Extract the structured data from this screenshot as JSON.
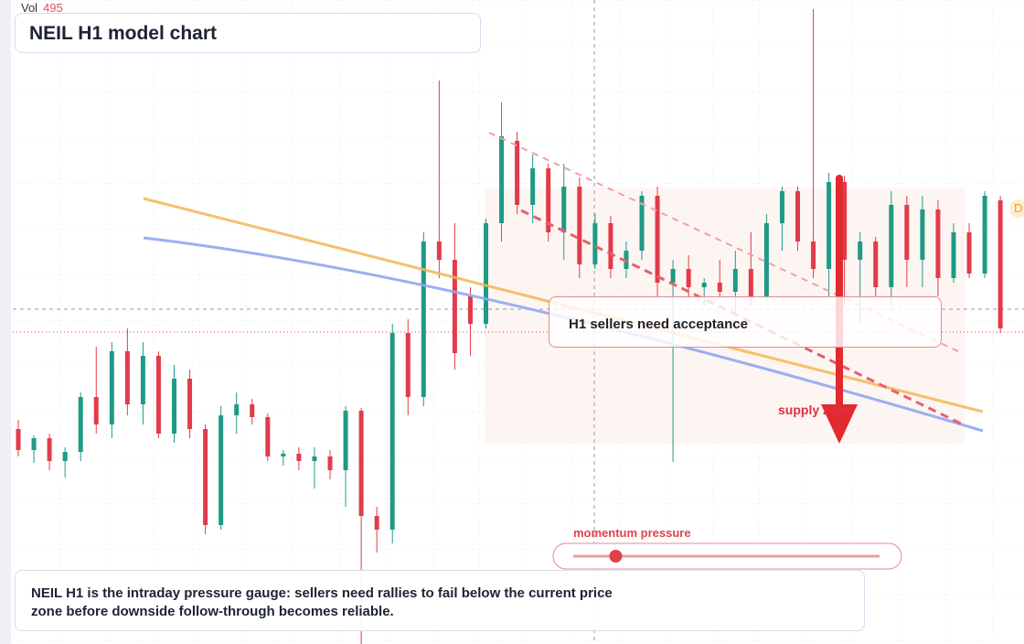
{
  "chart_data": {
    "type": "candlestick",
    "title": "NEIL H1 model chart",
    "volume_label": "Vol",
    "volume_value": 495,
    "up_color": "#1e9a86",
    "down_color": "#e23b4b",
    "ylim": [
      0,
      704
    ],
    "ohlc": [
      [
        235,
        245,
        205,
        212
      ],
      [
        212,
        228,
        198,
        225
      ],
      [
        225,
        230,
        190,
        200
      ],
      [
        200,
        215,
        182,
        210
      ],
      [
        210,
        275,
        200,
        270
      ],
      [
        270,
        325,
        230,
        240
      ],
      [
        240,
        330,
        225,
        320
      ],
      [
        320,
        345,
        250,
        262
      ],
      [
        262,
        330,
        240,
        315
      ],
      [
        315,
        320,
        225,
        230
      ],
      [
        230,
        305,
        220,
        290
      ],
      [
        290,
        300,
        225,
        235
      ],
      [
        235,
        240,
        120,
        130
      ],
      [
        130,
        260,
        125,
        250
      ],
      [
        250,
        275,
        230,
        262
      ],
      [
        262,
        268,
        240,
        248
      ],
      [
        248,
        252,
        200,
        205
      ],
      [
        205,
        212,
        195,
        208
      ],
      [
        208,
        215,
        190,
        200
      ],
      [
        200,
        215,
        170,
        205
      ],
      [
        205,
        212,
        180,
        190
      ],
      [
        190,
        260,
        150,
        255
      ],
      [
        255,
        258,
        0,
        140
      ],
      [
        140,
        150,
        100,
        125
      ],
      [
        125,
        350,
        110,
        340
      ],
      [
        340,
        355,
        250,
        270
      ],
      [
        270,
        450,
        260,
        440
      ],
      [
        440,
        616,
        400,
        420
      ],
      [
        420,
        460,
        300,
        318
      ],
      [
        380,
        390,
        315,
        350
      ],
      [
        350,
        465,
        345,
        460
      ],
      [
        460,
        592,
        440,
        555
      ],
      [
        550,
        560,
        470,
        480
      ],
      [
        480,
        535,
        460,
        520
      ],
      [
        520,
        525,
        440,
        450
      ],
      [
        450,
        525,
        420,
        500
      ],
      [
        500,
        510,
        400,
        415
      ],
      [
        415,
        470,
        410,
        460
      ],
      [
        460,
        468,
        400,
        410
      ],
      [
        410,
        440,
        400,
        430
      ],
      [
        430,
        495,
        420,
        490
      ],
      [
        490,
        500,
        380,
        395
      ],
      [
        395,
        420,
        199,
        410
      ],
      [
        410,
        425,
        380,
        390
      ],
      [
        390,
        400,
        370,
        395
      ],
      [
        395,
        420,
        380,
        385
      ],
      [
        385,
        430,
        360,
        410
      ],
      [
        410,
        450,
        370,
        380
      ],
      [
        380,
        470,
        375,
        460
      ],
      [
        460,
        500,
        430,
        495
      ],
      [
        495,
        500,
        430,
        440
      ],
      [
        440,
        694,
        400,
        410
      ],
      [
        410,
        515,
        380,
        505
      ],
      [
        505,
        512,
        370,
        420
      ],
      [
        420,
        450,
        350,
        440
      ],
      [
        440,
        445,
        380,
        390
      ],
      [
        390,
        495,
        370,
        480
      ],
      [
        480,
        490,
        390,
        420
      ],
      [
        420,
        490,
        390,
        475
      ],
      [
        475,
        485,
        380,
        400
      ],
      [
        400,
        460,
        395,
        450
      ],
      [
        450,
        460,
        400,
        405
      ],
      [
        405,
        495,
        400,
        490
      ],
      [
        485,
        490,
        340,
        345
      ]
    ],
    "annotations": {
      "zone": "H1 sellers need acceptance",
      "supply": "supply zone",
      "badge": "D"
    },
    "momentum": {
      "label": "momentum pressure",
      "value": 7,
      "range": [
        0,
        100
      ]
    },
    "note": "NEIL H1 is the intraday pressure gauge: sellers need rallies to fail below the current price zone before downside follow-through becomes reliable."
  }
}
